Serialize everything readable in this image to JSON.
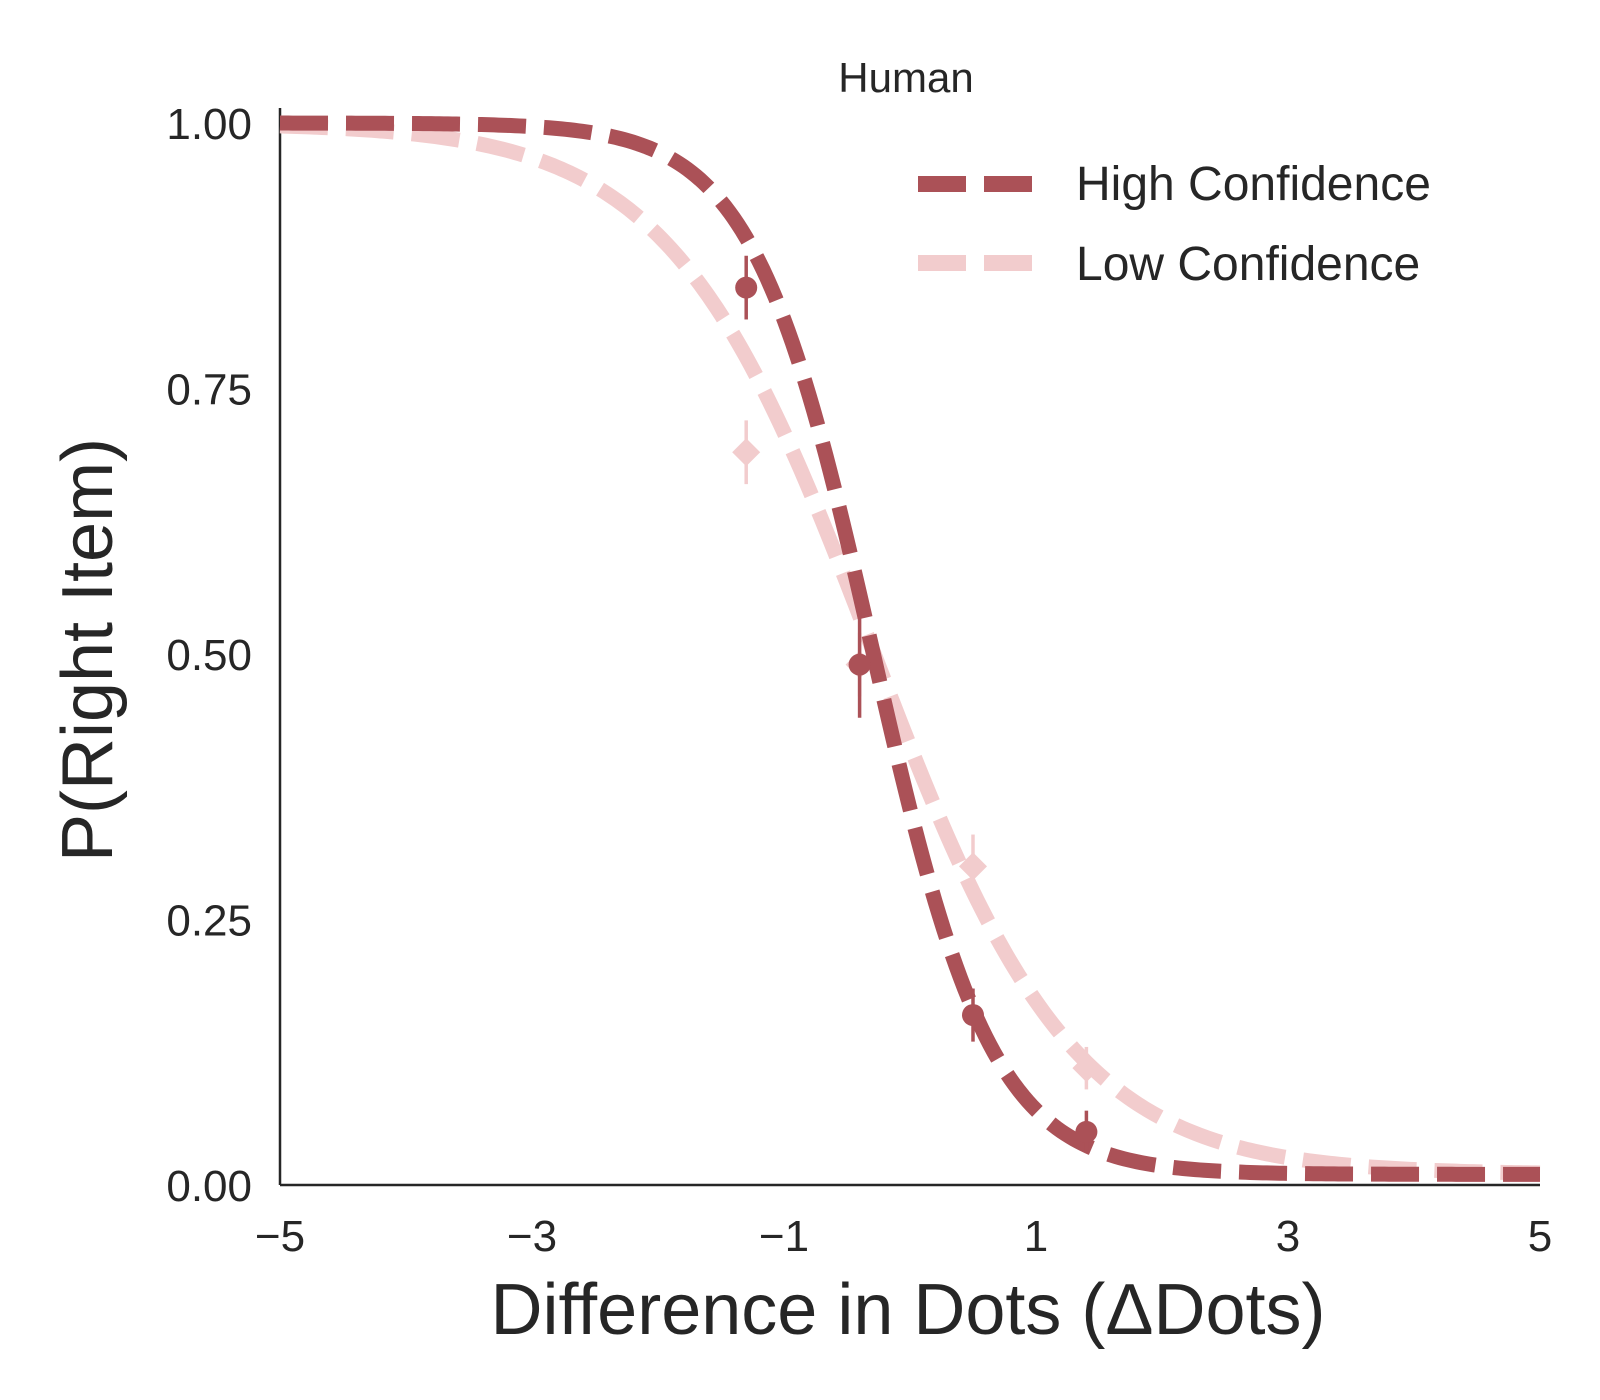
{
  "chart_data": {
    "type": "line",
    "title": "Human",
    "xlabel": "Difference in Dots (ΔDots)",
    "ylabel": "P(Right Item)",
    "xlim": [
      -5,
      5
    ],
    "ylim": [
      0,
      1.02
    ],
    "xticks": [
      -5,
      -3,
      -1,
      1,
      3,
      5
    ],
    "xtick_labels": [
      "−5",
      "−3",
      "−1",
      "1",
      "3",
      "5"
    ],
    "yticks": [
      0,
      0.25,
      0.5,
      0.75,
      1.0
    ],
    "ytick_labels": [
      "0.00",
      "0.25",
      "0.50",
      "0.75",
      "1.00"
    ],
    "grid": false,
    "legend_position": "top-right",
    "series": [
      {
        "name": "High Confidence",
        "color": "#ab5157",
        "linestyle": "dashed",
        "fit": {
          "midpoint": -0.3,
          "slope": 2.1,
          "lower": 0.01,
          "upper": 1.0
        },
        "points": [
          {
            "x": -1.3,
            "y": 0.845,
            "err": 0.03
          },
          {
            "x": -0.4,
            "y": 0.49,
            "err": 0.05
          },
          {
            "x": 0.5,
            "y": 0.16,
            "err": 0.025
          },
          {
            "x": 1.4,
            "y": 0.05,
            "err": 0.02
          }
        ]
      },
      {
        "name": "Low Confidence",
        "color": "#f2cccd",
        "linestyle": "dashed",
        "fit": {
          "midpoint": -0.3,
          "slope": 1.25,
          "lower": 0.01,
          "upper": 1.0
        },
        "points": [
          {
            "x": -1.3,
            "y": 0.69,
            "err": 0.03
          },
          {
            "x": -0.4,
            "y": 0.49,
            "err": 0.03
          },
          {
            "x": 0.5,
            "y": 0.3,
            "err": 0.03
          },
          {
            "x": 1.4,
            "y": 0.11,
            "err": 0.02
          }
        ]
      }
    ]
  }
}
